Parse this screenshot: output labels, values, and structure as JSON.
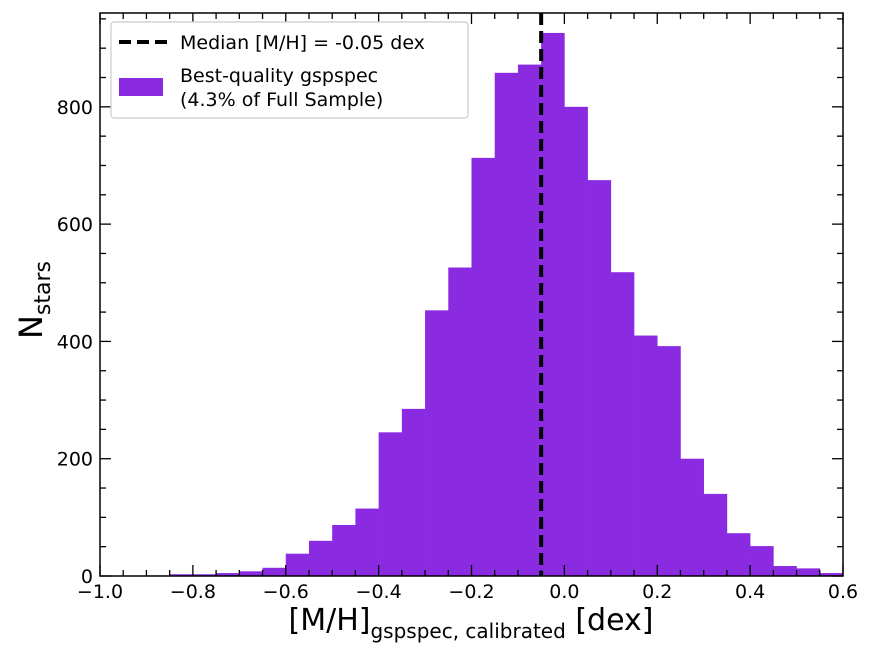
{
  "colors": {
    "bar": "#8a2be2",
    "median_line": "#000000",
    "axes": "#000000"
  },
  "chart_data": {
    "type": "bar",
    "title": "",
    "xlabel": {
      "main": "[M/H]",
      "subscript": "gspspec, calibrated",
      "suffix": " [dex]"
    },
    "ylabel": {
      "main": "N",
      "subscript": "stars"
    },
    "xlim": [
      -1.0,
      0.6
    ],
    "ylim": [
      0,
      960
    ],
    "x_ticks": [
      -1.0,
      -0.8,
      -0.6,
      -0.4,
      -0.2,
      0.0,
      0.2,
      0.4,
      0.6
    ],
    "x_tick_labels": [
      "−1.0",
      "−0.8",
      "−0.6",
      "−0.4",
      "−0.2",
      "0.0",
      "0.2",
      "0.4",
      "0.6"
    ],
    "y_ticks": [
      0,
      200,
      400,
      600,
      800
    ],
    "y_tick_labels": [
      "0",
      "200",
      "400",
      "600",
      "800"
    ],
    "bin_width": 0.05,
    "bin_edges": [
      -0.9,
      -0.85,
      -0.8,
      -0.75,
      -0.7,
      -0.65,
      -0.6,
      -0.55,
      -0.5,
      -0.45,
      -0.4,
      -0.35,
      -0.3,
      -0.25,
      -0.2,
      -0.15,
      -0.1,
      -0.05,
      0.0,
      0.05,
      0.1,
      0.15,
      0.2,
      0.25,
      0.3,
      0.35,
      0.4,
      0.45,
      0.5,
      0.55,
      0.6
    ],
    "values": [
      1,
      3,
      3,
      5,
      8,
      14,
      38,
      60,
      87,
      115,
      245,
      285,
      453,
      526,
      713,
      858,
      872,
      926,
      800,
      675,
      518,
      410,
      392,
      200,
      140,
      73,
      51,
      17,
      13,
      5
    ],
    "median_line": {
      "x": -0.05,
      "label": "Median [M/H] = -0.05 dex"
    },
    "legend": {
      "position": "top-left",
      "entries": [
        {
          "type": "line",
          "label": "Median [M/H] = -0.05 dex"
        },
        {
          "type": "patch",
          "label_lines": [
            "Best-quality gspspec",
            "(4.3% of Full Sample)"
          ]
        }
      ]
    }
  }
}
